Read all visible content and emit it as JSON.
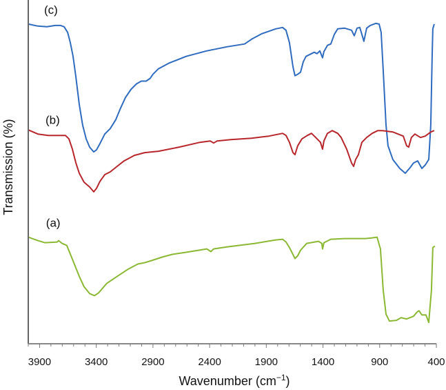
{
  "chart_data": {
    "type": "line",
    "title": "",
    "xlabel": "Wavenumber (cm",
    "xlabel_sup": "−1",
    "xlabel_close": ")",
    "ylabel": "Transmission (%)",
    "xlim": [
      4000,
      400
    ],
    "x_reversed": true,
    "ylim": [
      0,
      100
    ],
    "y_ticks_shown": false,
    "grid": false,
    "legend": "none",
    "x_ticks": [
      3900,
      3400,
      2900,
      2400,
      1900,
      1400,
      900,
      400
    ],
    "x_tick_labels": [
      "3900",
      "3400",
      "2900",
      "2400",
      "1900",
      "1400",
      "900",
      "400"
    ],
    "series": [
      {
        "label": "(c)",
        "color": "#2e6bc0",
        "label_at": [
          3800,
          96
        ],
        "points": [
          [
            4000,
            93
          ],
          [
            3915,
            92.4
          ],
          [
            3836,
            92.2
          ],
          [
            3763,
            92.6
          ],
          [
            3714,
            92.6
          ],
          [
            3684,
            92.2
          ],
          [
            3653,
            90.6
          ],
          [
            3629,
            87.6
          ],
          [
            3605,
            83.6
          ],
          [
            3580,
            77.6
          ],
          [
            3550,
            69.6
          ],
          [
            3520,
            63.6
          ],
          [
            3489,
            59.6
          ],
          [
            3459,
            57.2
          ],
          [
            3422,
            55.8
          ],
          [
            3398,
            56.4
          ],
          [
            3368,
            58.2
          ],
          [
            3325,
            61
          ],
          [
            3277,
            62.6
          ],
          [
            3228,
            65.2
          ],
          [
            3185,
            68.6
          ],
          [
            3143,
            71.6
          ],
          [
            3094,
            74
          ],
          [
            3045,
            75.6
          ],
          [
            3003,
            76.4
          ],
          [
            2960,
            76.4
          ],
          [
            2924,
            77.2
          ],
          [
            2900,
            78.4
          ],
          [
            2851,
            80
          ],
          [
            2760,
            81.6
          ],
          [
            2608,
            83.6
          ],
          [
            2425,
            85.2
          ],
          [
            2243,
            86.4
          ],
          [
            2091,
            87.2
          ],
          [
            2030,
            88.6
          ],
          [
            1939,
            90.2
          ],
          [
            1817,
            91.6
          ],
          [
            1756,
            92
          ],
          [
            1726,
            91.2
          ],
          [
            1696,
            87.6
          ],
          [
            1665,
            80.6
          ],
          [
            1647,
            78
          ],
          [
            1623,
            78.4
          ],
          [
            1598,
            79
          ],
          [
            1574,
            82
          ],
          [
            1550,
            83.6
          ],
          [
            1501,
            84.4
          ],
          [
            1477,
            84.8
          ],
          [
            1452,
            84.4
          ],
          [
            1428,
            85.2
          ],
          [
            1404,
            83.2
          ],
          [
            1392,
            85
          ],
          [
            1361,
            86.8
          ],
          [
            1331,
            87.2
          ],
          [
            1300,
            90
          ],
          [
            1270,
            91.6
          ],
          [
            1209,
            91.8
          ],
          [
            1148,
            91.2
          ],
          [
            1124,
            89.6
          ],
          [
            1100,
            91.8
          ],
          [
            1075,
            92
          ],
          [
            1039,
            88
          ],
          [
            1015,
            91.8
          ],
          [
            984,
            92.6
          ],
          [
            936,
            93.2
          ],
          [
            905,
            93
          ],
          [
            887,
            90.6
          ],
          [
            869,
            79.6
          ],
          [
            844,
            63.6
          ],
          [
            826,
            57.6
          ],
          [
            784,
            53.6
          ],
          [
            723,
            51
          ],
          [
            674,
            49.6
          ],
          [
            632,
            51.2
          ],
          [
            601,
            52.6
          ],
          [
            565,
            53.2
          ],
          [
            528,
            51
          ],
          [
            498,
            52
          ],
          [
            467,
            53.6
          ],
          [
            449,
            63.6
          ],
          [
            437,
            83.6
          ],
          [
            431,
            91.6
          ],
          [
            419,
            93
          ]
        ]
      },
      {
        "label": "(b)",
        "color": "#b8252a",
        "label_at": [
          3785,
          64
        ],
        "points": [
          [
            4000,
            62.2
          ],
          [
            3915,
            61
          ],
          [
            3824,
            60.6
          ],
          [
            3672,
            60.6
          ],
          [
            3641,
            59.6
          ],
          [
            3611,
            56.6
          ],
          [
            3580,
            52.6
          ],
          [
            3550,
            49.6
          ],
          [
            3508,
            47
          ],
          [
            3459,
            45.6
          ],
          [
            3422,
            44.2
          ],
          [
            3398,
            45.2
          ],
          [
            3368,
            47.2
          ],
          [
            3325,
            49.2
          ],
          [
            3277,
            50
          ],
          [
            3216,
            51.6
          ],
          [
            3155,
            53.2
          ],
          [
            3064,
            54.8
          ],
          [
            2972,
            55.6
          ],
          [
            2851,
            56
          ],
          [
            2668,
            57.2
          ],
          [
            2486,
            58.6
          ],
          [
            2395,
            59
          ],
          [
            2365,
            58.4
          ],
          [
            2334,
            59
          ],
          [
            2213,
            59.4
          ],
          [
            2030,
            59.8
          ],
          [
            1878,
            60.4
          ],
          [
            1756,
            61.2
          ],
          [
            1726,
            60.6
          ],
          [
            1696,
            58.6
          ],
          [
            1665,
            55.6
          ],
          [
            1647,
            55
          ],
          [
            1623,
            57.6
          ],
          [
            1586,
            59.6
          ],
          [
            1538,
            60.6
          ],
          [
            1501,
            61.2
          ],
          [
            1452,
            59.6
          ],
          [
            1422,
            58.6
          ],
          [
            1404,
            56.6
          ],
          [
            1392,
            59
          ],
          [
            1361,
            61.2
          ],
          [
            1319,
            62
          ],
          [
            1270,
            61.2
          ],
          [
            1240,
            60
          ],
          [
            1191,
            56.6
          ],
          [
            1148,
            52.6
          ],
          [
            1130,
            51.6
          ],
          [
            1112,
            53.6
          ],
          [
            1088,
            55
          ],
          [
            1057,
            58.6
          ],
          [
            1015,
            60
          ],
          [
            966,
            61.2
          ],
          [
            917,
            62
          ],
          [
            875,
            62
          ],
          [
            784,
            61.6
          ],
          [
            692,
            60.4
          ],
          [
            662,
            57.6
          ],
          [
            644,
            57.2
          ],
          [
            620,
            60
          ],
          [
            589,
            61
          ],
          [
            540,
            60
          ],
          [
            498,
            60.4
          ],
          [
            449,
            61.6
          ],
          [
            419,
            62
          ]
        ]
      },
      {
        "label": "(a)",
        "color": "#8ab832",
        "label_at": [
          3780,
          34
        ],
        "points": [
          [
            4000,
            31
          ],
          [
            3915,
            30
          ],
          [
            3854,
            29.4
          ],
          [
            3745,
            29.6
          ],
          [
            3732,
            30
          ],
          [
            3702,
            29.2
          ],
          [
            3660,
            28.6
          ],
          [
            3611,
            24.6
          ],
          [
            3550,
            19.6
          ],
          [
            3508,
            16.6
          ],
          [
            3459,
            14.6
          ],
          [
            3416,
            14
          ],
          [
            3380,
            14.8
          ],
          [
            3307,
            17.6
          ],
          [
            3216,
            19.6
          ],
          [
            3124,
            21.6
          ],
          [
            3033,
            23.2
          ],
          [
            2972,
            23.6
          ],
          [
            2912,
            24.2
          ],
          [
            2820,
            25.2
          ],
          [
            2729,
            26
          ],
          [
            2608,
            26.6
          ],
          [
            2425,
            27.6
          ],
          [
            2389,
            26.8
          ],
          [
            2365,
            27.6
          ],
          [
            2243,
            28.2
          ],
          [
            2000,
            29.2
          ],
          [
            1817,
            30.2
          ],
          [
            1756,
            30.4
          ],
          [
            1726,
            29.6
          ],
          [
            1696,
            28
          ],
          [
            1647,
            24.8
          ],
          [
            1623,
            25.6
          ],
          [
            1598,
            27.2
          ],
          [
            1544,
            29.2
          ],
          [
            1440,
            29.8
          ],
          [
            1410,
            29.2
          ],
          [
            1404,
            27.6
          ],
          [
            1392,
            29.4
          ],
          [
            1331,
            30.4
          ],
          [
            1209,
            30.6
          ],
          [
            1027,
            30.6
          ],
          [
            966,
            30.8
          ],
          [
            923,
            31
          ],
          [
            893,
            27.6
          ],
          [
            869,
            15.6
          ],
          [
            844,
            8.6
          ],
          [
            814,
            6.6
          ],
          [
            753,
            6.8
          ],
          [
            711,
            7.6
          ],
          [
            662,
            7.2
          ],
          [
            601,
            8
          ],
          [
            571,
            9.2
          ],
          [
            553,
            9.6
          ],
          [
            528,
            8.4
          ],
          [
            492,
            8.4
          ],
          [
            467,
            6.2
          ],
          [
            443,
            15.6
          ],
          [
            431,
            28
          ],
          [
            413,
            28.4
          ]
        ]
      }
    ]
  }
}
